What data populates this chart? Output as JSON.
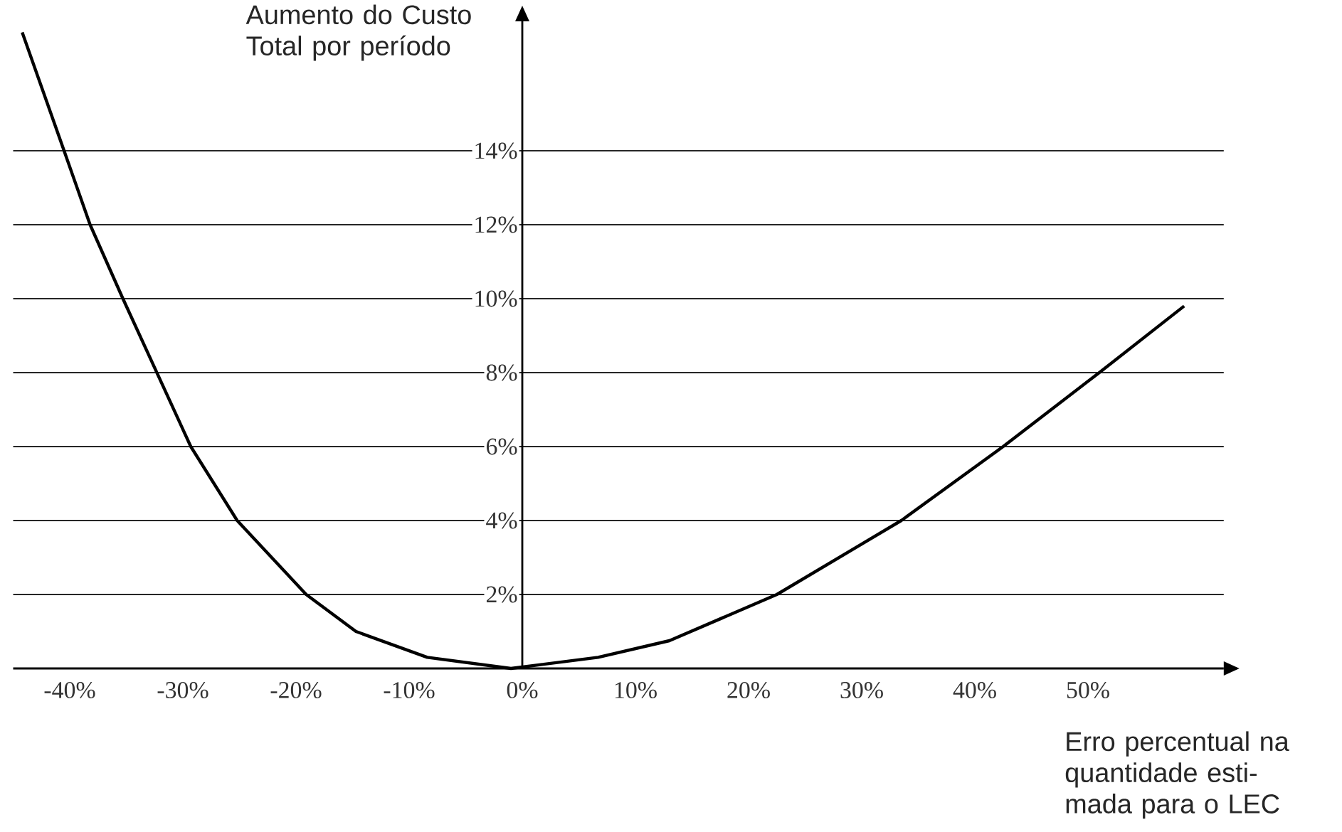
{
  "chart_data": {
    "type": "line",
    "xlabel": "Erro percentual na quantidade esti-mada para o LEC",
    "ylabel": "Aumento do Custo Total por período",
    "x": [
      -44.2,
      -40.5,
      -38.2,
      -35.3,
      -32.3,
      -29.3,
      -25.2,
      -19.1,
      -14.7,
      -8.4,
      -1,
      6.7,
      13,
      22.5,
      33.5,
      42.5,
      51,
      58.5
    ],
    "values": [
      17.2,
      14,
      12,
      10,
      8,
      6,
      4,
      2,
      1.0,
      0.3,
      0,
      0.3,
      0.75,
      2,
      4,
      6,
      8,
      9.8
    ],
    "color": "#000000",
    "xlim": [
      -45,
      62
    ],
    "ylim": [
      0,
      17.5
    ],
    "xticks": [
      {
        "value": -40,
        "label": "-40%"
      },
      {
        "value": -30,
        "label": "-30%"
      },
      {
        "value": -20,
        "label": "-20%"
      },
      {
        "value": -10,
        "label": "-10%"
      },
      {
        "value": 0,
        "label": "0%"
      },
      {
        "value": 10,
        "label": "10%"
      },
      {
        "value": 20,
        "label": "20%"
      },
      {
        "value": 30,
        "label": "30%"
      },
      {
        "value": 40,
        "label": "40%"
      },
      {
        "value": 50,
        "label": "50%"
      }
    ],
    "yticks": [
      {
        "value": 2,
        "label": "2%"
      },
      {
        "value": 4,
        "label": "4%"
      },
      {
        "value": 6,
        "label": "6%"
      },
      {
        "value": 8,
        "label": "8%"
      },
      {
        "value": 10,
        "label": "10%"
      },
      {
        "value": 12,
        "label": "12%"
      },
      {
        "value": 14,
        "label": "14%"
      }
    ],
    "grid": "y",
    "marker": "none",
    "line_style": "solid"
  }
}
